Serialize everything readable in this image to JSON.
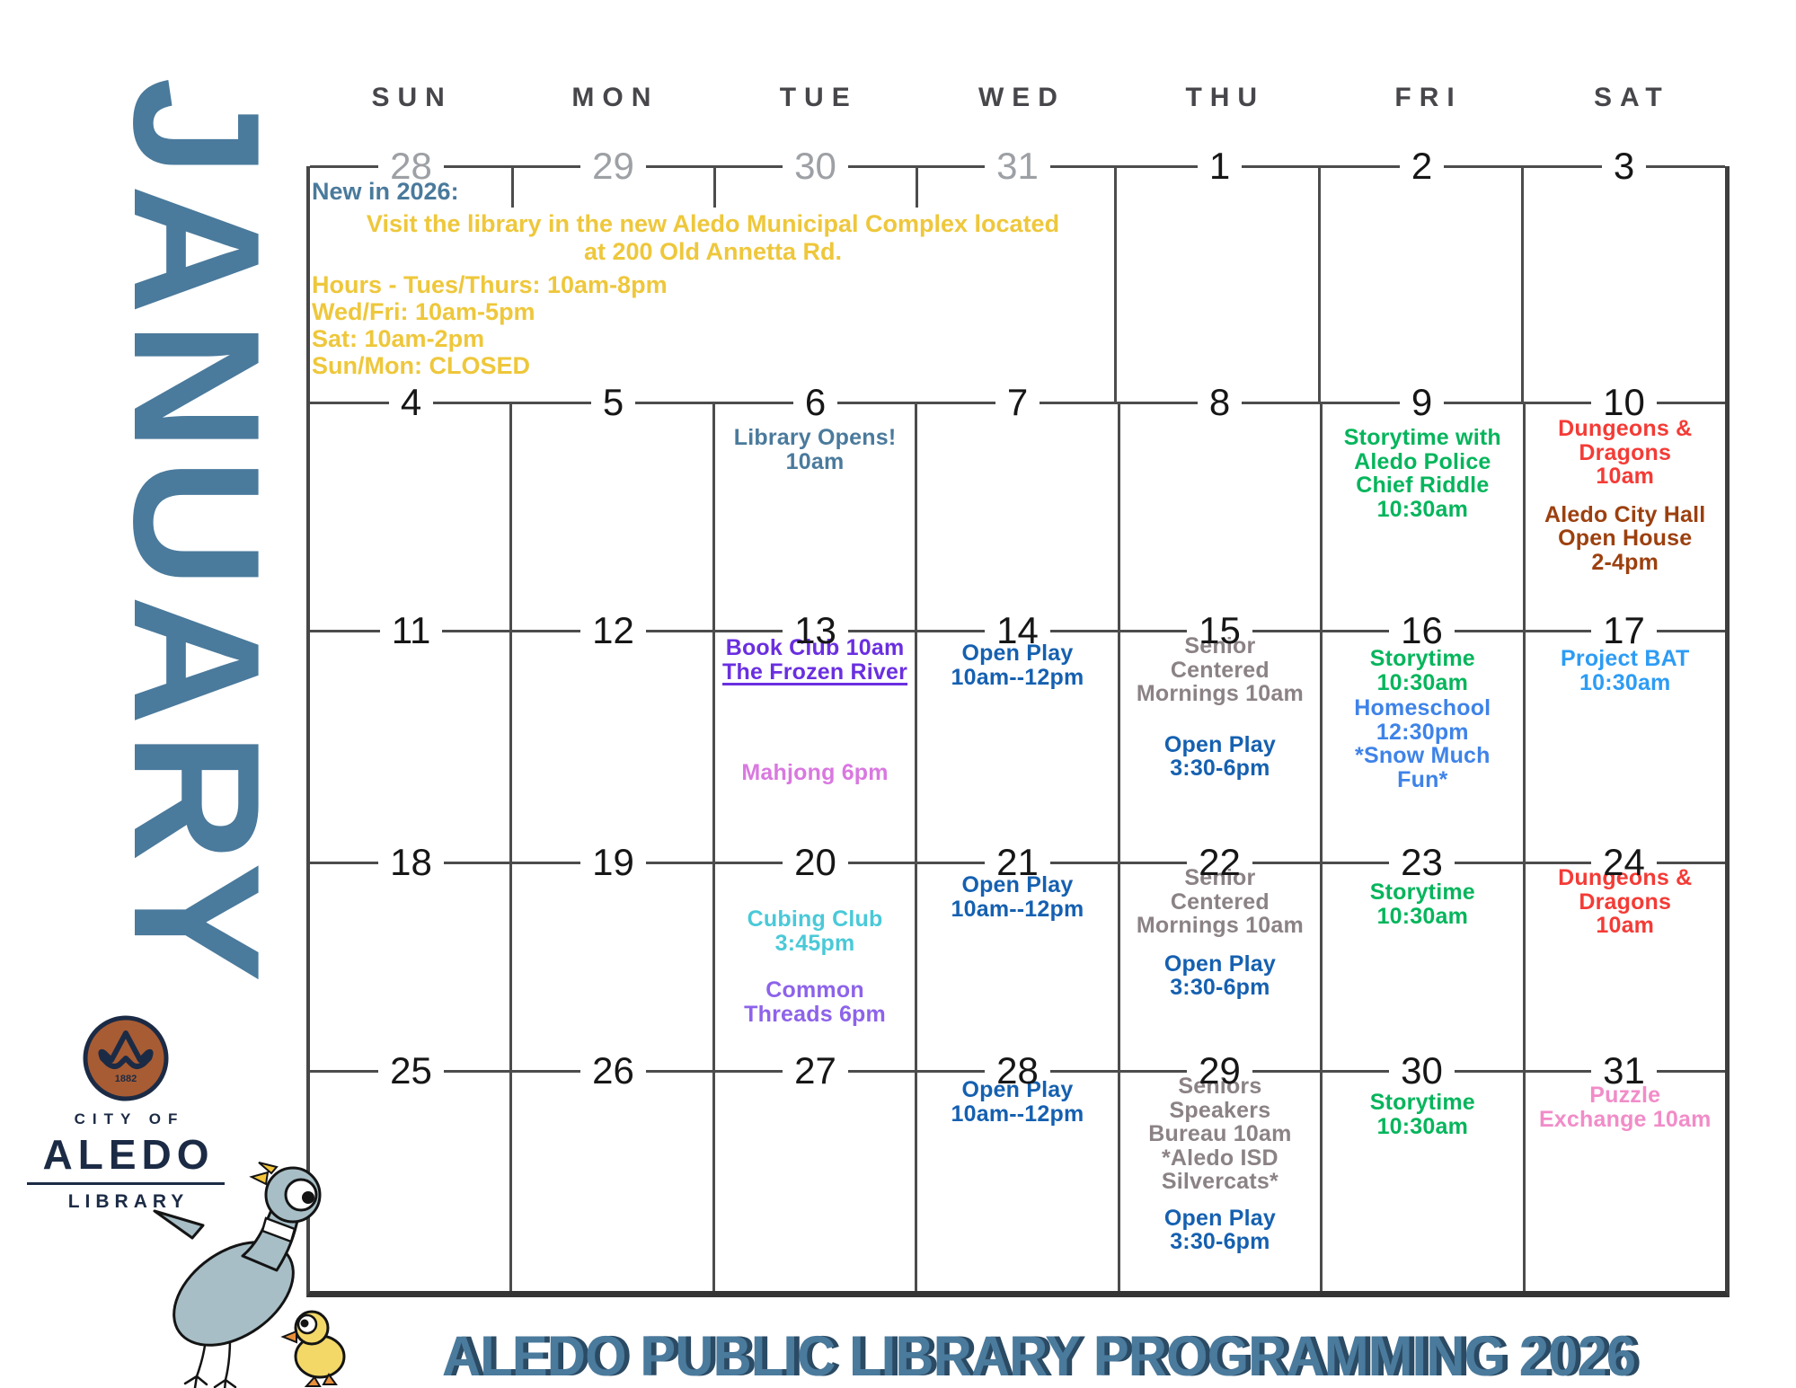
{
  "month": "JANUARY",
  "footer_title": "ALEDO PUBLIC LIBRARY PROGRAMMING 2026",
  "weekdays": [
    "SUN",
    "MON",
    "TUE",
    "WED",
    "THU",
    "FRI",
    "SAT"
  ],
  "colors": {
    "steel": "#4a7a9c",
    "yellow": "#eec73b",
    "green": "#06b55c",
    "red": "#f43b36",
    "brown": "#9c400f",
    "purple": "#6a2fe0",
    "orchid": "#d978e0",
    "blue": "#1560b0",
    "gray": "#8b8286",
    "sky": "#2d9cf4",
    "bright": "#3e83e8",
    "turquoise": "#4ac9d8",
    "violet": "#8d63ea",
    "pink": "#f18cc8",
    "navy": "#1c2b45",
    "grid_line": "#4c4c4c"
  },
  "announcement": {
    "heading": "New in 2026:",
    "address_lines": [
      "Visit the library in the new Aledo Municipal Complex located",
      "at 200 Old Annetta Rd."
    ],
    "hours_lines": [
      "Hours - Tues/Thurs: 10am-8pm",
      "Wed/Fri: 10am-5pm",
      "Sat: 10am-2pm",
      "Sun/Mon: CLOSED"
    ]
  },
  "logo": {
    "year": "1882",
    "city_of": "CITY OF",
    "name": "ALEDO",
    "dept": "LIBRARY"
  },
  "weeks": [
    {
      "dates": [
        {
          "n": "28",
          "muted": true
        },
        {
          "n": "29",
          "muted": true
        },
        {
          "n": "30",
          "muted": true
        },
        {
          "n": "31",
          "muted": true
        },
        {
          "n": "1"
        },
        {
          "n": "2"
        },
        {
          "n": "3"
        }
      ],
      "cells": [
        [],
        [],
        [],
        [],
        [],
        [],
        []
      ]
    },
    {
      "dates": [
        {
          "n": "4"
        },
        {
          "n": "5"
        },
        {
          "n": "6"
        },
        {
          "n": "7"
        },
        {
          "n": "8"
        },
        {
          "n": "9"
        },
        {
          "n": "10"
        }
      ],
      "cells": [
        [],
        [],
        [
          {
            "lines": [
              "Library Opens!",
              "10am"
            ],
            "color": "steel",
            "mt": 24
          }
        ],
        [],
        [],
        [
          {
            "lines": [
              "Storytime with",
              "Aledo Police",
              "Chief Riddle",
              "10:30am"
            ],
            "color": "green",
            "mt": 24
          }
        ],
        [
          {
            "lines": [
              "Dungeons &",
              "Dragons",
              "10am"
            ],
            "color": "red",
            "mt": 14
          },
          {
            "lines": [
              "Aledo City Hall",
              "Open House",
              "2-4pm"
            ],
            "color": "brown",
            "mt": 16
          }
        ]
      ]
    },
    {
      "dates": [
        {
          "n": "11"
        },
        {
          "n": "12"
        },
        {
          "n": "13"
        },
        {
          "n": "14"
        },
        {
          "n": "15"
        },
        {
          "n": "16"
        },
        {
          "n": "17"
        }
      ],
      "cells": [
        [],
        [],
        [
          {
            "lines": [
              "Book Club 10am",
              "The Frozen River"
            ],
            "color": "purple",
            "mt": 4,
            "underline_line": 1
          },
          {
            "lines": [
              "Mahjong 6pm"
            ],
            "color": "orchid",
            "mt": 86
          }
        ],
        [
          {
            "lines": [
              "Open Play",
              "10am--12pm"
            ],
            "color": "blue",
            "mt": 10
          }
        ],
        [
          {
            "lines": [
              "Senior",
              "Centered",
              "Mornings 10am"
            ],
            "color": "gray",
            "mt": 2
          },
          {
            "lines": [
              "Open Play",
              "3:30-6pm"
            ],
            "color": "blue",
            "mt": 30
          }
        ],
        [
          {
            "lines": [
              "Storytime",
              "10:30am"
            ],
            "color": "green",
            "mt": 16
          },
          {
            "lines": [
              "Homeschool",
              "12:30pm",
              "*Snow Much",
              "Fun*"
            ],
            "color": "bright",
            "mt": 2
          }
        ],
        [
          {
            "lines": [
              "Project BAT",
              "10:30am"
            ],
            "color": "sky",
            "mt": 16
          }
        ]
      ]
    },
    {
      "dates": [
        {
          "n": "18"
        },
        {
          "n": "19"
        },
        {
          "n": "20"
        },
        {
          "n": "21"
        },
        {
          "n": "22"
        },
        {
          "n": "23"
        },
        {
          "n": "24"
        }
      ],
      "cells": [
        [],
        [],
        [
          {
            "lines": [
              "Cubing Club",
              "3:45pm"
            ],
            "color": "turquoise",
            "mt": 48
          },
          {
            "lines": [
              "Common",
              "Threads 6pm"
            ],
            "color": "violet",
            "mt": 26
          }
        ],
        [
          {
            "lines": [
              "Open Play",
              "10am--12pm"
            ],
            "color": "blue",
            "mt": 10
          }
        ],
        [
          {
            "lines": [
              "Senior",
              "Centered",
              "Mornings 10am"
            ],
            "color": "gray",
            "mt": 2
          },
          {
            "lines": [
              "Open Play",
              "3:30-6pm"
            ],
            "color": "blue",
            "mt": 16
          }
        ],
        [
          {
            "lines": [
              "Storytime",
              "10:30am"
            ],
            "color": "green",
            "mt": 18
          }
        ],
        [
          {
            "lines": [
              "Dungeons &",
              "Dragons",
              "10am"
            ],
            "color": "red",
            "mt": 2
          }
        ]
      ]
    },
    {
      "dates": [
        {
          "n": "25"
        },
        {
          "n": "26"
        },
        {
          "n": "27"
        },
        {
          "n": "28"
        },
        {
          "n": "29"
        },
        {
          "n": "30"
        },
        {
          "n": "31"
        }
      ],
      "cells": [
        [],
        [],
        [],
        [
          {
            "lines": [
              "Open Play",
              "10am--12pm"
            ],
            "color": "blue",
            "mt": 6
          }
        ],
        [
          {
            "lines": [
              "Seniors",
              "Speakers",
              "Bureau 10am",
              "*Aledo ISD",
              "Silvercats*"
            ],
            "color": "gray",
            "mt": 2
          },
          {
            "lines": [
              "Open Play",
              "3:30-6pm"
            ],
            "color": "blue",
            "mt": 14
          }
        ],
        [
          {
            "lines": [
              "Storytime",
              "10:30am"
            ],
            "color": "green",
            "mt": 20
          }
        ],
        [
          {
            "lines": [
              "Puzzle",
              "Exchange 10am"
            ],
            "color": "pink",
            "mt": 12
          }
        ]
      ]
    }
  ]
}
